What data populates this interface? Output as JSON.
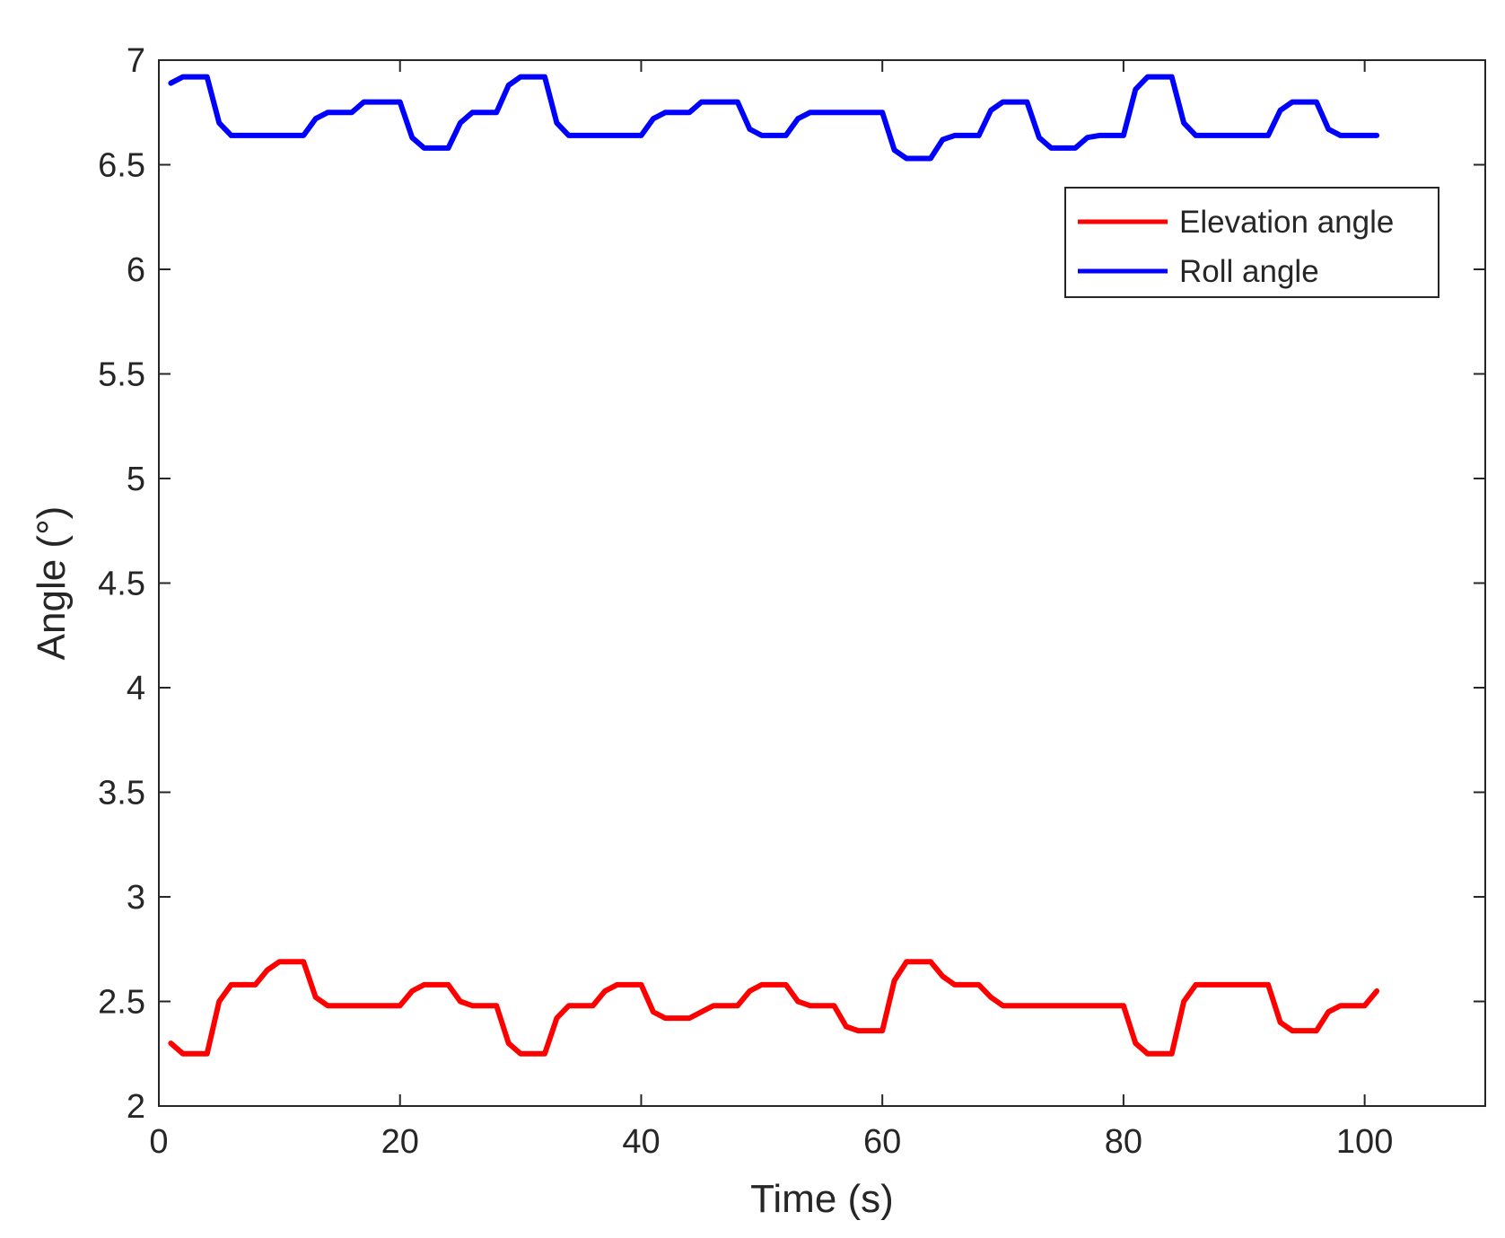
{
  "chart_data": {
    "type": "line",
    "title": "",
    "xlabel": "Time (s)",
    "ylabel": "Angle (°)",
    "xlim": [
      0,
      110
    ],
    "ylim": [
      2,
      7
    ],
    "xticks": [
      0,
      20,
      40,
      60,
      80,
      100
    ],
    "yticks": [
      2,
      2.5,
      3,
      3.5,
      4,
      4.5,
      5,
      5.5,
      6,
      6.5,
      7
    ],
    "xtick_labels": [
      "0",
      "20",
      "40",
      "60",
      "80",
      "100"
    ],
    "ytick_labels": [
      "2",
      "2.5",
      "3",
      "3.5",
      "4",
      "4.5",
      "5",
      "5.5",
      "6",
      "6.5",
      "7"
    ],
    "grid": false,
    "legend_position": "top-right",
    "series": [
      {
        "name": "Elevation angle",
        "color": "#ff0000",
        "x": [
          1,
          2,
          3,
          4,
          5,
          6,
          7,
          8,
          9,
          10,
          11,
          12,
          13,
          14,
          15,
          16,
          17,
          18,
          19,
          20,
          21,
          22,
          23,
          24,
          25,
          26,
          27,
          28,
          29,
          30,
          31,
          32,
          33,
          34,
          35,
          36,
          37,
          38,
          39,
          40,
          41,
          42,
          43,
          44,
          45,
          46,
          47,
          48,
          49,
          50,
          51,
          52,
          53,
          54,
          55,
          56,
          57,
          58,
          59,
          60,
          61,
          62,
          63,
          64,
          65,
          66,
          67,
          68,
          69,
          70,
          71,
          72,
          73,
          74,
          75,
          76,
          77,
          78,
          79,
          80,
          81,
          82,
          83,
          84,
          85,
          86,
          87,
          88,
          89,
          90,
          91,
          92,
          93,
          94,
          95,
          96,
          97,
          98,
          99,
          100,
          101
        ],
        "values": [
          2.3,
          2.25,
          2.25,
          2.25,
          2.5,
          2.58,
          2.58,
          2.58,
          2.65,
          2.69,
          2.69,
          2.69,
          2.52,
          2.48,
          2.48,
          2.48,
          2.48,
          2.48,
          2.48,
          2.48,
          2.55,
          2.58,
          2.58,
          2.58,
          2.5,
          2.48,
          2.48,
          2.48,
          2.3,
          2.25,
          2.25,
          2.25,
          2.42,
          2.48,
          2.48,
          2.48,
          2.55,
          2.58,
          2.58,
          2.58,
          2.45,
          2.42,
          2.42,
          2.42,
          2.45,
          2.48,
          2.48,
          2.48,
          2.55,
          2.58,
          2.58,
          2.58,
          2.5,
          2.48,
          2.48,
          2.48,
          2.38,
          2.36,
          2.36,
          2.36,
          2.6,
          2.69,
          2.69,
          2.69,
          2.62,
          2.58,
          2.58,
          2.58,
          2.52,
          2.48,
          2.48,
          2.48,
          2.48,
          2.48,
          2.48,
          2.48,
          2.48,
          2.48,
          2.48,
          2.48,
          2.3,
          2.25,
          2.25,
          2.25,
          2.5,
          2.58,
          2.58,
          2.58,
          2.58,
          2.58,
          2.58,
          2.58,
          2.4,
          2.36,
          2.36,
          2.36,
          2.45,
          2.48,
          2.48,
          2.48,
          2.55
        ]
      },
      {
        "name": "Roll angle",
        "color": "#0000ff",
        "x": [
          1,
          2,
          3,
          4,
          5,
          6,
          7,
          8,
          9,
          10,
          11,
          12,
          13,
          14,
          15,
          16,
          17,
          18,
          19,
          20,
          21,
          22,
          23,
          24,
          25,
          26,
          27,
          28,
          29,
          30,
          31,
          32,
          33,
          34,
          35,
          36,
          37,
          38,
          39,
          40,
          41,
          42,
          43,
          44,
          45,
          46,
          47,
          48,
          49,
          50,
          51,
          52,
          53,
          54,
          55,
          56,
          57,
          58,
          59,
          60,
          61,
          62,
          63,
          64,
          65,
          66,
          67,
          68,
          69,
          70,
          71,
          72,
          73,
          74,
          75,
          76,
          77,
          78,
          79,
          80,
          81,
          82,
          83,
          84,
          85,
          86,
          87,
          88,
          89,
          90,
          91,
          92,
          93,
          94,
          95,
          96,
          97,
          98,
          99,
          100,
          101
        ],
        "values": [
          6.89,
          6.92,
          6.92,
          6.92,
          6.7,
          6.64,
          6.64,
          6.64,
          6.64,
          6.64,
          6.64,
          6.64,
          6.72,
          6.75,
          6.75,
          6.75,
          6.8,
          6.8,
          6.8,
          6.8,
          6.63,
          6.58,
          6.58,
          6.58,
          6.7,
          6.75,
          6.75,
          6.75,
          6.88,
          6.92,
          6.92,
          6.92,
          6.7,
          6.64,
          6.64,
          6.64,
          6.64,
          6.64,
          6.64,
          6.64,
          6.72,
          6.75,
          6.75,
          6.75,
          6.8,
          6.8,
          6.8,
          6.8,
          6.67,
          6.64,
          6.64,
          6.64,
          6.72,
          6.75,
          6.75,
          6.75,
          6.75,
          6.75,
          6.75,
          6.75,
          6.57,
          6.53,
          6.53,
          6.53,
          6.62,
          6.64,
          6.64,
          6.64,
          6.76,
          6.8,
          6.8,
          6.8,
          6.63,
          6.58,
          6.58,
          6.58,
          6.63,
          6.64,
          6.64,
          6.64,
          6.86,
          6.92,
          6.92,
          6.92,
          6.7,
          6.64,
          6.64,
          6.64,
          6.64,
          6.64,
          6.64,
          6.64,
          6.76,
          6.8,
          6.8,
          6.8,
          6.67,
          6.64,
          6.64,
          6.64,
          6.64
        ]
      }
    ],
    "legend": {
      "entries": [
        "Elevation angle",
        "Roll angle"
      ]
    }
  }
}
